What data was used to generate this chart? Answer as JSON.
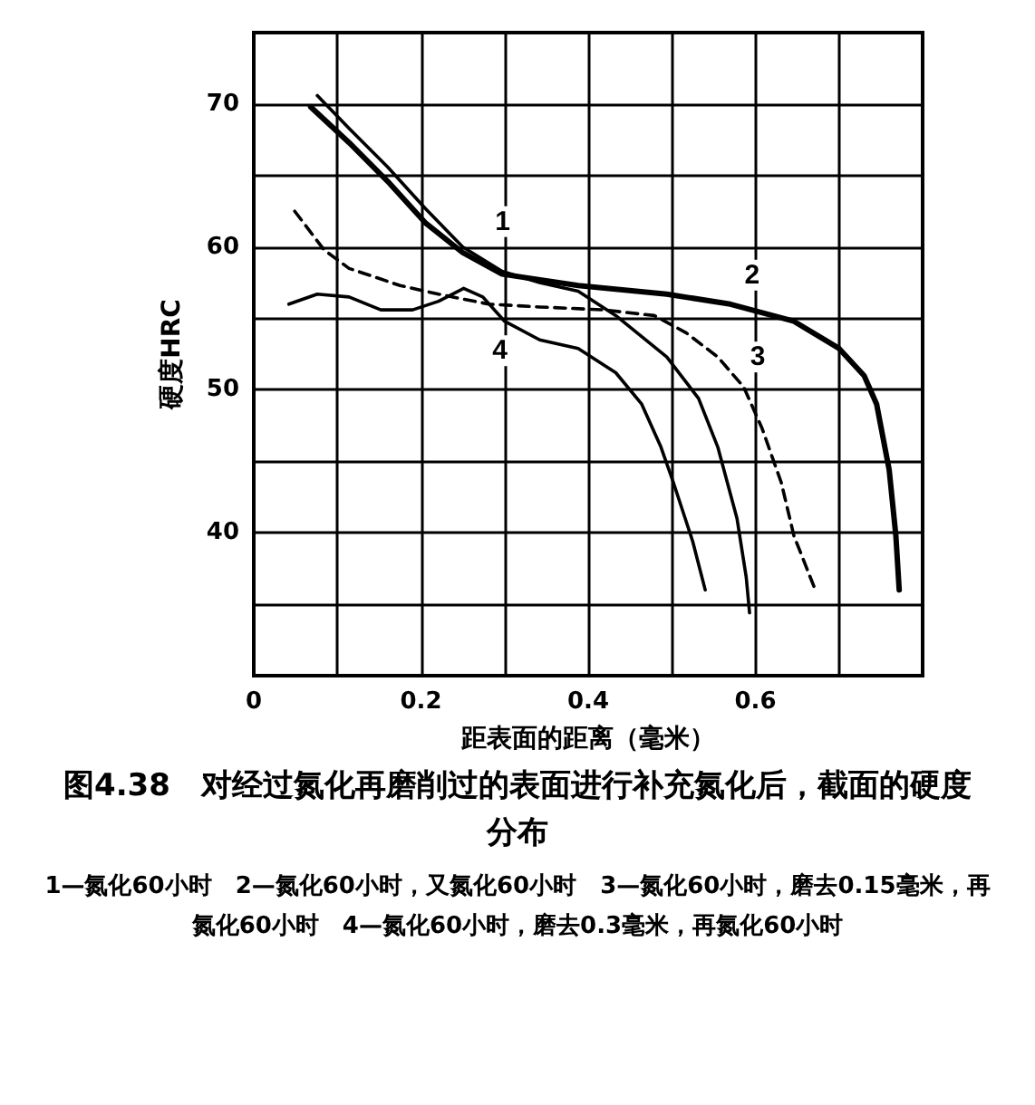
{
  "chart_data": {
    "type": "line",
    "title": "图4.38　对经过氮化再磨削过的表面进行补充氮化后，截面的硬度分布",
    "xlabel": "距表面的距离（毫米）",
    "ylabel": "硬度HRC",
    "xlim": [
      0,
      0.8
    ],
    "xticks": [
      0,
      {
        "value": 0.1,
        "label": null
      },
      0.2,
      {
        "value": 0.3,
        "label": null
      },
      0.4,
      {
        "value": 0.5,
        "label": null
      },
      0.6,
      {
        "value": 0.7,
        "label": null
      },
      {
        "value": 0.8,
        "label": null
      }
    ],
    "ylim": [
      30,
      75
    ],
    "yticks": [
      {
        "value": 30,
        "label": null
      },
      {
        "value": 35,
        "label": null
      },
      40,
      {
        "value": 45,
        "label": null
      },
      50,
      {
        "value": 55,
        "label": null
      },
      60,
      {
        "value": 65,
        "label": null
      },
      70,
      {
        "value": 75,
        "label": null
      }
    ],
    "grid": true,
    "marker": "none",
    "series": [
      {
        "name": "1",
        "color": "#000000",
        "line_style": "solid",
        "x": [
          0.076,
          0.114,
          0.16,
          0.205,
          0.25,
          0.297,
          0.342,
          0.388,
          0.433,
          0.494,
          0.532,
          0.555,
          0.578,
          0.589,
          0.593
        ],
        "values": [
          70.6,
          68.3,
          65.6,
          62.7,
          60,
          58.3,
          57.5,
          56.9,
          55.2,
          52.3,
          49.4,
          46,
          41,
          36.9,
          34.4
        ]
      },
      {
        "name": "2",
        "color": "#000000",
        "line_style": "solid",
        "x": [
          0.068,
          0.114,
          0.16,
          0.205,
          0.25,
          0.297,
          0.388,
          0.494,
          0.57,
          0.646,
          0.7,
          0.73,
          0.745,
          0.76,
          0.768,
          0.772
        ],
        "values": [
          69.8,
          67.3,
          64.6,
          61.7,
          59.6,
          58.1,
          57.3,
          56.7,
          56,
          54.8,
          52.9,
          51,
          49,
          44.4,
          39.8,
          36
        ]
      },
      {
        "name": "3",
        "color": "#000000",
        "line_style": "dashed",
        "x": [
          0.049,
          0.084,
          0.114,
          0.175,
          0.221,
          0.281,
          0.342,
          0.418,
          0.479,
          0.517,
          0.555,
          0.586,
          0.608,
          0.631,
          0.646,
          0.673
        ],
        "values": [
          62.5,
          59.8,
          58.5,
          57.3,
          56.7,
          56,
          55.8,
          55.6,
          55.2,
          54,
          52.3,
          50.2,
          47.3,
          43.5,
          39.8,
          35.8
        ]
      },
      {
        "name": "4",
        "color": "#000000",
        "line_style": "solid",
        "x": [
          0.042,
          0.076,
          0.114,
          0.152,
          0.19,
          0.221,
          0.251,
          0.274,
          0.3,
          0.342,
          0.388,
          0.433,
          0.464,
          0.487,
          0.502,
          0.525,
          0.54
        ],
        "values": [
          56,
          56.7,
          56.5,
          55.6,
          55.6,
          56.2,
          57.1,
          56.5,
          54.8,
          53.5,
          52.9,
          51.2,
          49,
          46,
          43.5,
          39.4,
          36
        ]
      }
    ],
    "annotations": [
      "1—氮化60小时　2—氮化60小时，又氮化60小时　3—氮化60小时，磨去0.15毫米，再氮化60小时　4—氮化60小时，磨去0.3毫米，再氮化60小时"
    ]
  }
}
